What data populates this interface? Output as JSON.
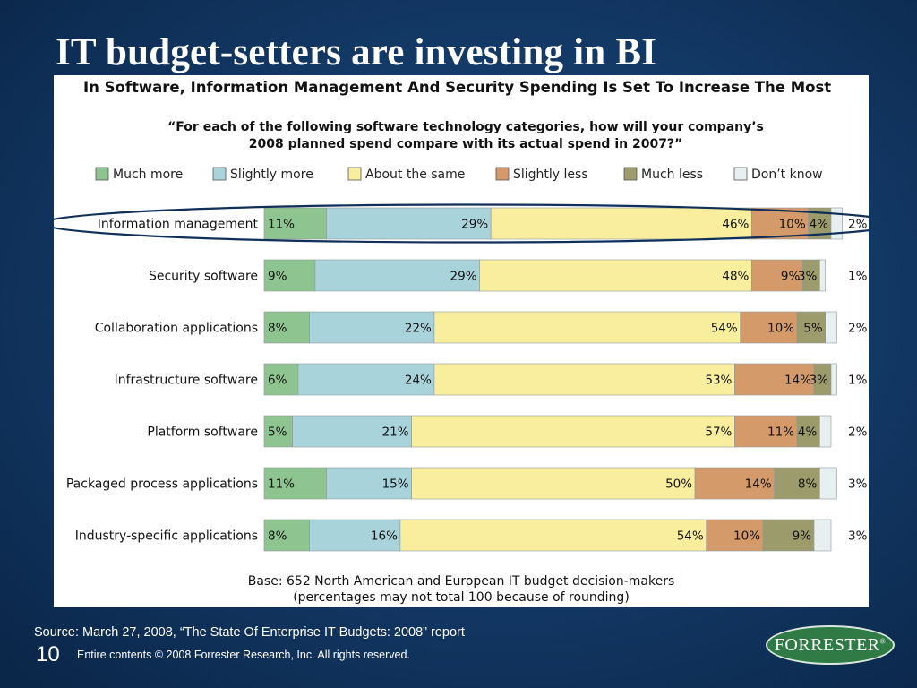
{
  "slide": {
    "title": "IT budget-setters are investing in BI",
    "source": "Source: March 27, 2008, “The State Of Enterprise IT Budgets: 2008” report",
    "page_number": "10",
    "copyright": "Entire contents © 2008  Forrester Research, Inc. All rights reserved.",
    "logo_text": "FORRESTER",
    "logo_mark": "®"
  },
  "chart_data": {
    "type": "bar",
    "orientation": "horizontal-stacked",
    "title": "In Software, Information Management And Security Spending Is Set To Increase The Most",
    "subtitle_lines": [
      "“For each of the following software technology categories, how will your company’s",
      "2008 planned spend compare with its actual spend in 2007?”"
    ],
    "footnote_lines": [
      "Base: 652 North American and European IT budget decision-makers",
      "(percentages may not total 100 because of rounding)"
    ],
    "legend_position": "top",
    "highlight_category": "Information management",
    "series": [
      {
        "name": "Much more",
        "color": "#8dc48f"
      },
      {
        "name": "Slightly more",
        "color": "#a9d3db"
      },
      {
        "name": "About the same",
        "color": "#f8ee9e"
      },
      {
        "name": "Slightly less",
        "color": "#d49a6a"
      },
      {
        "name": "Much less",
        "color": "#9b9b6b"
      },
      {
        "name": "Don’t know",
        "color": "#e7eff0"
      }
    ],
    "categories": [
      "Information management",
      "Security software",
      "Collaboration applications",
      "Infrastructure software",
      "Platform software",
      "Packaged process applications",
      "Industry-specific applications"
    ],
    "values": [
      [
        11,
        29,
        46,
        10,
        4,
        2
      ],
      [
        9,
        29,
        48,
        9,
        3,
        1
      ],
      [
        8,
        22,
        54,
        10,
        5,
        2
      ],
      [
        6,
        24,
        53,
        14,
        3,
        1
      ],
      [
        5,
        21,
        57,
        11,
        4,
        2
      ],
      [
        11,
        15,
        50,
        14,
        8,
        3
      ],
      [
        8,
        16,
        54,
        10,
        9,
        3
      ]
    ],
    "labels": [
      [
        "11%",
        "29%",
        "46%",
        "10%",
        "4%",
        "2%"
      ],
      [
        "9%",
        "29%",
        "48%",
        "9%",
        "3%",
        "1%"
      ],
      [
        "8%",
        "22%",
        "54%",
        "10%",
        "5%",
        "2%"
      ],
      [
        "6%",
        "24%",
        "53%",
        "14%",
        "3%",
        "1%"
      ],
      [
        "5%",
        "21%",
        "57%",
        "11%",
        "4%",
        "2%"
      ],
      [
        "11%",
        "15%",
        "50%",
        "14%",
        "8%",
        "3%"
      ],
      [
        "8%",
        "16%",
        "54%",
        "10%",
        "9%",
        "3%"
      ]
    ],
    "xlim": [
      0,
      100
    ]
  }
}
